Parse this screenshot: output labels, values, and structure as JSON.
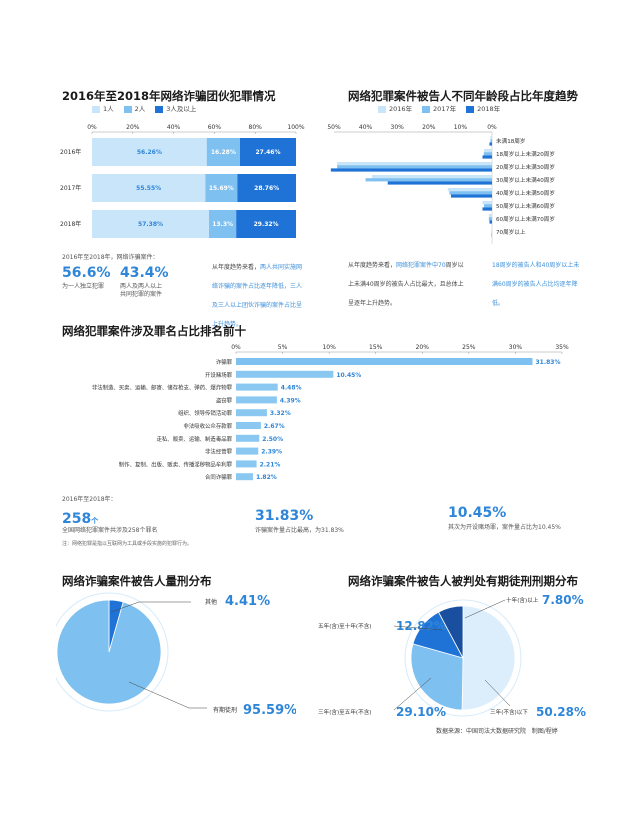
{
  "colors": {
    "c1": "#c9e5fa",
    "c2": "#7ec0f0",
    "c3": "#1f73d6",
    "accent": "#2f86d8"
  },
  "chart1": {
    "title": "2016年至2018年网络诈骗团伙犯罪情况",
    "type": "bar",
    "stacked": true,
    "orientation": "horizontal",
    "categories": [
      "2016年",
      "2017年",
      "2018年"
    ],
    "series": [
      {
        "name": "1人",
        "values": [
          56.26,
          55.55,
          57.38
        ]
      },
      {
        "name": "2人",
        "values": [
          16.28,
          15.69,
          13.3
        ]
      },
      {
        "name": "3人及以上",
        "values": [
          27.46,
          28.76,
          29.32
        ]
      }
    ],
    "value_labels": [
      [
        "56.26%",
        "16.28%",
        "27.46%"
      ],
      [
        "55.55%",
        "15.69%",
        "28.76%"
      ],
      [
        "57.38%",
        "13.3%",
        "29.32%"
      ]
    ],
    "ticks": [
      "0%",
      "20%",
      "40%",
      "60%",
      "80%",
      "100%"
    ],
    "xlim": [
      0,
      100
    ]
  },
  "chart1_notes": {
    "intro": "2016年至2018年，网络诈骗案件：",
    "stat1_value": "56.6%",
    "stat1_label": "为一人独立犯罪",
    "stat2_value": "43.4%",
    "stat2_label_1": "两人及两人以上",
    "stat2_label_2": "共同犯罪的案件",
    "trend_1": "从年度趋势来看，",
    "trend_blue": "两人共同实施网络诈骗的案件占比逐年降低，三人及三人以上团伙诈骗的案件占比呈上升趋势。"
  },
  "chart2": {
    "title": "网络犯罪案件被告人不同年龄段占比年度趋势",
    "type": "bar",
    "orientation": "horizontal",
    "categories": [
      "未满18周岁",
      "18周岁以上未满20周岁",
      "20周岁以上未满30周岁",
      "30周岁以上未满40周岁",
      "40周岁以上未满50周岁",
      "50周岁以上未满60周岁",
      "60周岁以上未满70周岁",
      "70周岁以上"
    ],
    "series": [
      {
        "name": "2016年",
        "values": [
          0.5,
          2.5,
          49,
          38,
          14,
          3,
          1,
          0.1
        ]
      },
      {
        "name": "2017年",
        "values": [
          0.5,
          2.6,
          49,
          40,
          13.5,
          2.5,
          1,
          0.1
        ]
      },
      {
        "name": "2018年",
        "values": [
          0.8,
          3.0,
          51,
          33,
          13,
          3,
          0.8,
          0.1
        ]
      }
    ],
    "ticks": [
      "50%",
      "40%",
      "30%",
      "20%",
      "10%",
      "0%"
    ],
    "xlim": [
      50,
      0
    ]
  },
  "chart2_notes": {
    "left_1": "从年度趋势来看，",
    "left_blue": "网络犯罪案件中70",
    "left_2": "周岁以上未满40周岁的被告人占比最大，且总体上呈逐年上升趋势。",
    "right_blue": "18周岁的被告人和40周岁以上未满60周岁的被告人占比均逐年降低。"
  },
  "chart3": {
    "title": "网络犯罪案件涉及罪名占比排名前十",
    "type": "bar",
    "orientation": "horizontal",
    "categories": [
      "诈骗罪",
      "开设赌场罪",
      "非法制造、买卖、运输、邮寄、储存枪支、弹药、爆炸物罪",
      "盗窃罪",
      "组织、领导传销活动罪",
      "非法吸收公众存款罪",
      "走私、贩卖、运输、制造毒品罪",
      "非法经营罪",
      "制作、复制、出版、贩卖、传播淫秽物品牟利罪",
      "合同诈骗罪"
    ],
    "values": [
      31.83,
      10.45,
      4.48,
      4.39,
      3.32,
      2.67,
      2.5,
      2.39,
      2.21,
      1.82
    ],
    "value_labels": [
      "31.83%",
      "10.45%",
      "4.48%",
      "4.39%",
      "3.32%",
      "2.67%",
      "2.50%",
      "2.39%",
      "2.21%",
      "1.82%"
    ],
    "ticks": [
      "0%",
      "5%",
      "10%",
      "15%",
      "20%",
      "25%",
      "30%",
      "35%"
    ],
    "xlim": [
      0,
      35
    ]
  },
  "chart3_notes": {
    "intro": "2016年至2018年：",
    "count_value": "258",
    "count_unit": "个",
    "count_label": "全国网络犯罪案件共涉及258个罪名",
    "fraud_value": "31.83%",
    "fraud_label": "诈骗案件量占比最高，为31.83%",
    "casino_value": "10.45%",
    "casino_label": "其次为开设赌场罪，案件量占比为10.45%",
    "footnote": "注：网络犯罪是指以互联网为工具或手段实施的犯罪行为。"
  },
  "chart4": {
    "title": "网络诈骗案件被告人量刑分布",
    "type": "pie",
    "labels": [
      "其他",
      "有期徒刑"
    ],
    "values": [
      4.41,
      95.59
    ],
    "value_labels": [
      "4.41%",
      "95.59%"
    ]
  },
  "chart5": {
    "title": "网络诈骗案件被告人被判处有期徒刑刑期分布",
    "type": "pie",
    "labels": [
      "三年(不含)以下",
      "三年(含)至五年(不含)",
      "五年(含)至十年(不含)",
      "十年(含)以上"
    ],
    "values": [
      50.28,
      29.1,
      12.82,
      7.8
    ],
    "value_labels": [
      "50.28%",
      "29.10%",
      "12.82%",
      "7.80%"
    ]
  },
  "footer": {
    "source": "数据来源：中国司法大数据研究院",
    "maker": "制图/程婷"
  }
}
